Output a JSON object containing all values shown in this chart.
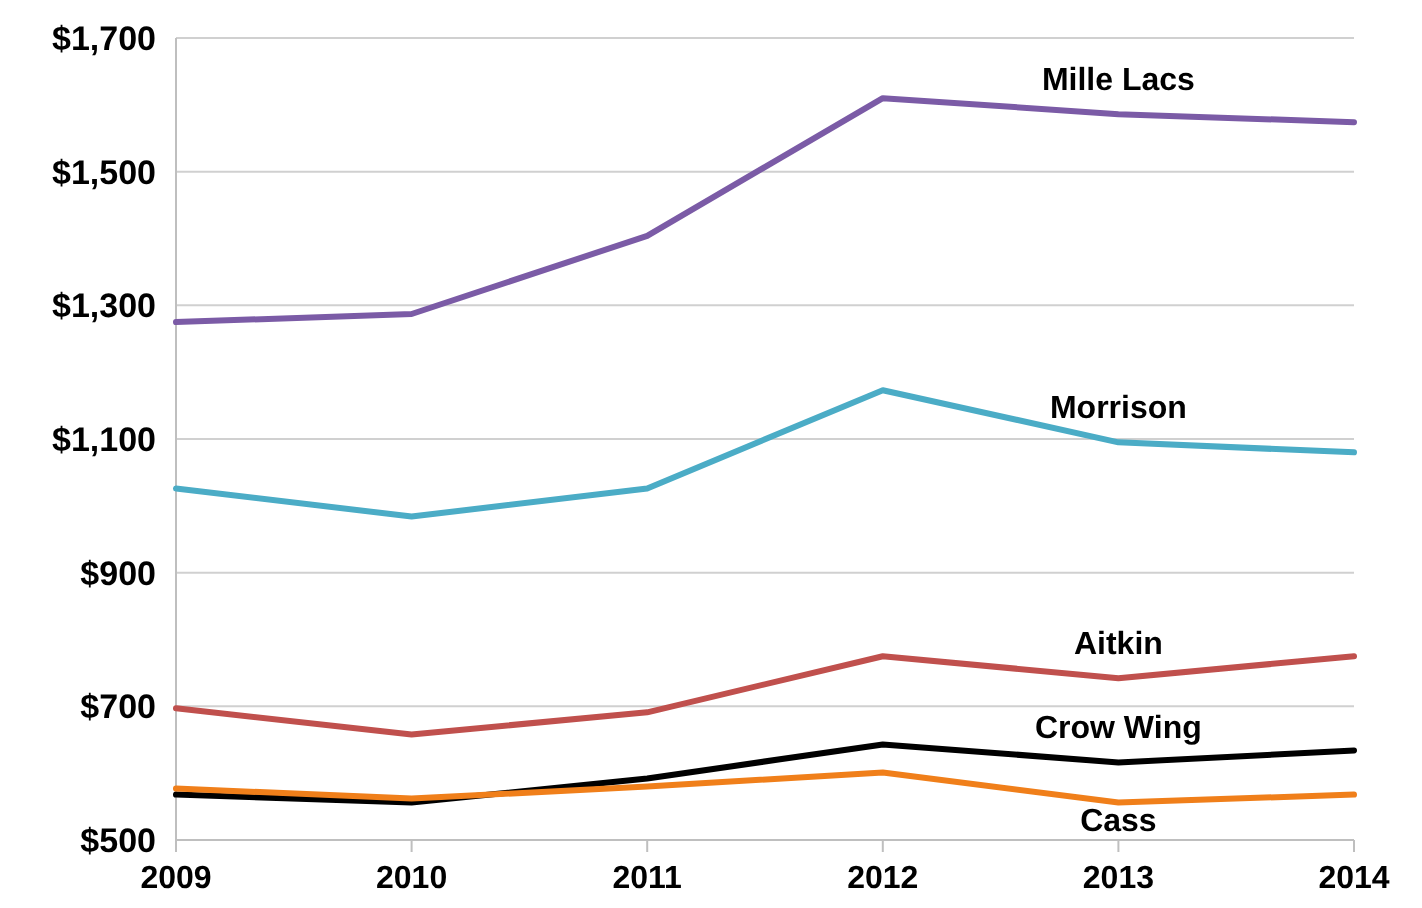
{
  "chart_data": {
    "type": "line",
    "x": [
      2009,
      2010,
      2011,
      2012,
      2013,
      2014
    ],
    "xlim": [
      2009,
      2014
    ],
    "xticks": [
      2009,
      2010,
      2011,
      2012,
      2013,
      2014
    ],
    "ylim": [
      500,
      1700
    ],
    "yticks": [
      {
        "value": 500,
        "label": "$500"
      },
      {
        "value": 700,
        "label": "$700"
      },
      {
        "value": 900,
        "label": "$900"
      },
      {
        "value": 1100,
        "label": "$1,100"
      },
      {
        "value": 1300,
        "label": "$1,300"
      },
      {
        "value": 1500,
        "label": "$1,500"
      },
      {
        "value": 1700,
        "label": "$1,700"
      }
    ],
    "grid": "y",
    "legend": false,
    "marker": "none",
    "line_style": "solid",
    "series": [
      {
        "name": "Mille Lacs",
        "color": "#7b5ba6",
        "values": [
          1275,
          1287,
          1404,
          1610,
          1586,
          1574
        ]
      },
      {
        "name": "Morrison",
        "color": "#4bacc6",
        "values": [
          1026,
          984,
          1026,
          1173,
          1095,
          1080
        ]
      },
      {
        "name": "Aitkin",
        "color": "#c0504d",
        "values": [
          697,
          658,
          691,
          775,
          742,
          775
        ]
      },
      {
        "name": "Crow Wing",
        "color": "#000000",
        "values": [
          568,
          556,
          592,
          643,
          616,
          634
        ]
      },
      {
        "name": "Cass",
        "color": "#f07f1a",
        "values": [
          577,
          562,
          580,
          601,
          556,
          568
        ]
      }
    ]
  }
}
